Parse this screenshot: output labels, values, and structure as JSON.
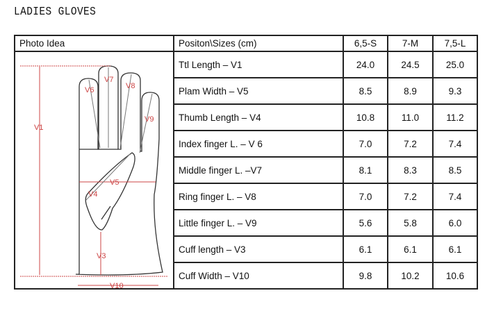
{
  "title": "LADIES GLOVES",
  "header": {
    "photo": "Photo Idea",
    "position": "Positon\\Sizes (cm)",
    "sizes": [
      "6,5-S",
      "7-M",
      "7,5-L"
    ]
  },
  "rows": [
    {
      "label": "Ttl Length – V1",
      "values": [
        "24.0",
        "24.5",
        "25.0"
      ]
    },
    {
      "label": "Plam Width – V5",
      "values": [
        "8.5",
        "8.9",
        "9.3"
      ]
    },
    {
      "label": "Thumb Length – V4",
      "values": [
        "10.8",
        "11.0",
        "11.2"
      ]
    },
    {
      "label": "Index finger L. – V 6",
      "values": [
        "7.0",
        "7.2",
        "7.4"
      ]
    },
    {
      "label": "Middle finger L. –V7",
      "values": [
        "8.1",
        "8.3",
        "8.5"
      ]
    },
    {
      "label": "Ring finger L. – V8",
      "values": [
        "7.0",
        "7.2",
        "7.4"
      ]
    },
    {
      "label": "Little finger L. – V9",
      "values": [
        "5.6",
        "5.8",
        "6.0"
      ]
    },
    {
      "label": "Cuff length – V3",
      "values": [
        "6.1",
        "6.1",
        "6.1"
      ]
    },
    {
      "label": "Cuff Width – V10",
      "values": [
        "9.8",
        "10.2",
        "10.6"
      ]
    }
  ],
  "diagram_labels": {
    "v1": "V1",
    "v3": "V3",
    "v4": "V4",
    "v5": "V5",
    "v6": "V6",
    "v7": "V7",
    "v8": "V8",
    "v9": "V9",
    "v10": "V10"
  },
  "colors": {
    "dimension": "#c44444",
    "outline": "#333333"
  }
}
